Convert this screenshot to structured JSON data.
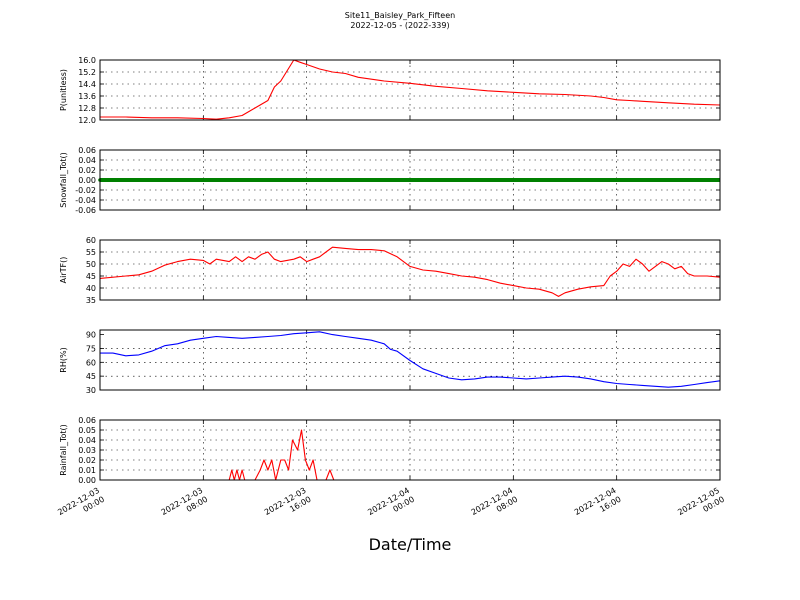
{
  "figure": {
    "title": "Site11_Baisley_Park_Fifteen",
    "subtitle": "2022-12-05 - (2022-339)",
    "xlabel": "Date/Time"
  },
  "chart_data": {
    "type": "line",
    "x_ticks": [
      [
        "2022-12-03",
        "00:00"
      ],
      [
        "2022-12-03",
        "08:00"
      ],
      [
        "2022-12-03",
        "16:00"
      ],
      [
        "2022-12-04",
        "00:00"
      ],
      [
        "2022-12-04",
        "08:00"
      ],
      [
        "2022-12-04",
        "16:00"
      ],
      [
        "2022-12-05",
        "00:00"
      ]
    ],
    "x_range_hours": [
      0,
      48
    ],
    "panels": [
      {
        "name": "pressure-panel",
        "ylabel": "P(unitless)",
        "ylim": [
          12.0,
          16.0
        ],
        "yticks": [
          "12.0",
          "12.8",
          "13.6",
          "14.4",
          "15.2",
          "16.0"
        ],
        "color": "#ff0000",
        "marker": false,
        "points": [
          [
            0,
            12.2
          ],
          [
            2,
            12.2
          ],
          [
            4,
            12.15
          ],
          [
            6,
            12.15
          ],
          [
            8,
            12.1
          ],
          [
            9,
            12.05
          ],
          [
            10,
            12.15
          ],
          [
            11,
            12.3
          ],
          [
            12,
            12.8
          ],
          [
            13,
            13.3
          ],
          [
            13.5,
            14.2
          ],
          [
            14,
            14.6
          ],
          [
            14.5,
            15.3
          ],
          [
            15,
            16.0
          ],
          [
            15.5,
            15.85
          ],
          [
            16,
            15.7
          ],
          [
            17,
            15.4
          ],
          [
            18,
            15.2
          ],
          [
            19,
            15.1
          ],
          [
            20,
            14.85
          ],
          [
            22,
            14.6
          ],
          [
            24,
            14.45
          ],
          [
            26,
            14.25
          ],
          [
            28,
            14.1
          ],
          [
            30,
            13.95
          ],
          [
            32,
            13.85
          ],
          [
            34,
            13.75
          ],
          [
            36,
            13.7
          ],
          [
            38,
            13.6
          ],
          [
            39,
            13.5
          ],
          [
            40,
            13.35
          ],
          [
            41,
            13.3
          ],
          [
            42,
            13.25
          ],
          [
            44,
            13.15
          ],
          [
            46,
            13.05
          ],
          [
            48,
            13.0
          ]
        ]
      },
      {
        "name": "snowfall-panel",
        "ylabel": "Snowfall_Tot()",
        "ylim": [
          -0.06,
          0.06
        ],
        "yticks": [
          "-0.06",
          "-0.04",
          "-0.02",
          "0.00",
          "0.02",
          "0.04",
          "0.06"
        ],
        "color": "#008000",
        "marker": true,
        "points": [
          [
            0,
            0
          ],
          [
            48,
            0
          ]
        ]
      },
      {
        "name": "air-temp-panel",
        "ylabel": "AirTF()",
        "ylim": [
          35,
          60
        ],
        "yticks": [
          "35",
          "40",
          "45",
          "50",
          "55",
          "60"
        ],
        "color": "#ff0000",
        "marker": false,
        "points": [
          [
            0,
            44
          ],
          [
            2,
            45
          ],
          [
            3,
            45.5
          ],
          [
            4,
            47
          ],
          [
            5,
            49.5
          ],
          [
            6,
            51
          ],
          [
            7,
            52
          ],
          [
            8,
            51.5
          ],
          [
            8.5,
            50
          ],
          [
            9,
            52
          ],
          [
            10,
            51
          ],
          [
            10.5,
            53
          ],
          [
            11,
            51
          ],
          [
            11.5,
            53
          ],
          [
            12,
            52
          ],
          [
            12.5,
            54
          ],
          [
            13,
            55
          ],
          [
            13.5,
            52
          ],
          [
            14,
            51
          ],
          [
            15,
            52
          ],
          [
            15.5,
            53
          ],
          [
            16,
            51
          ],
          [
            16.5,
            52
          ],
          [
            17,
            53
          ],
          [
            17.5,
            55
          ],
          [
            18,
            57
          ],
          [
            19,
            56.5
          ],
          [
            20,
            56
          ],
          [
            21,
            56
          ],
          [
            22,
            55.5
          ],
          [
            23,
            53
          ],
          [
            24,
            49
          ],
          [
            25,
            47.5
          ],
          [
            26,
            47
          ],
          [
            27,
            46
          ],
          [
            28,
            45
          ],
          [
            29,
            44.5
          ],
          [
            30,
            43.5
          ],
          [
            31,
            42
          ],
          [
            32,
            41
          ],
          [
            33,
            40
          ],
          [
            34,
            39.5
          ],
          [
            35,
            38
          ],
          [
            35.5,
            36.5
          ],
          [
            36,
            38
          ],
          [
            37,
            39.5
          ],
          [
            38,
            40.5
          ],
          [
            39,
            41
          ],
          [
            39.5,
            45
          ],
          [
            40,
            47
          ],
          [
            40.5,
            50
          ],
          [
            41,
            49
          ],
          [
            41.5,
            52
          ],
          [
            42,
            50
          ],
          [
            42.5,
            47
          ],
          [
            43,
            49
          ],
          [
            43.5,
            51
          ],
          [
            44,
            50
          ],
          [
            44.5,
            48
          ],
          [
            45,
            49
          ],
          [
            45.5,
            46
          ],
          [
            46,
            45
          ],
          [
            47,
            45
          ],
          [
            48,
            44.5
          ]
        ]
      },
      {
        "name": "rh-panel",
        "ylabel": "RH(%)",
        "ylim": [
          30,
          95
        ],
        "yticks": [
          "30",
          "45",
          "60",
          "75",
          "90"
        ],
        "color": "#0000ff",
        "marker": false,
        "points": [
          [
            0,
            70
          ],
          [
            1,
            70
          ],
          [
            2,
            67
          ],
          [
            3,
            68
          ],
          [
            4,
            72
          ],
          [
            5,
            78
          ],
          [
            6,
            80
          ],
          [
            7,
            84
          ],
          [
            8,
            86
          ],
          [
            9,
            88
          ],
          [
            10,
            87
          ],
          [
            11,
            86
          ],
          [
            12,
            87
          ],
          [
            13,
            88
          ],
          [
            14,
            89
          ],
          [
            15,
            91
          ],
          [
            16,
            92
          ],
          [
            17,
            93
          ],
          [
            18,
            90
          ],
          [
            19,
            88
          ],
          [
            20,
            86
          ],
          [
            21,
            84
          ],
          [
            22,
            80
          ],
          [
            22.5,
            74
          ],
          [
            23,
            72
          ],
          [
            24,
            62
          ],
          [
            25,
            53
          ],
          [
            26,
            48
          ],
          [
            27,
            43
          ],
          [
            28,
            41
          ],
          [
            29,
            42
          ],
          [
            30,
            44
          ],
          [
            31,
            44
          ],
          [
            32,
            43
          ],
          [
            33,
            42
          ],
          [
            34,
            43
          ],
          [
            35,
            44
          ],
          [
            36,
            45
          ],
          [
            37,
            44
          ],
          [
            38,
            42
          ],
          [
            39,
            39
          ],
          [
            40,
            37
          ],
          [
            41,
            36
          ],
          [
            42,
            35
          ],
          [
            43,
            34
          ],
          [
            44,
            33
          ],
          [
            45,
            34
          ],
          [
            46,
            36
          ],
          [
            47,
            38
          ],
          [
            48,
            40
          ]
        ]
      },
      {
        "name": "rainfall-panel",
        "ylabel": "Rainfall_Tot()",
        "ylim": [
          0,
          0.06
        ],
        "yticks": [
          "0.00",
          "0.01",
          "0.02",
          "0.03",
          "0.04",
          "0.05",
          "0.06"
        ],
        "color": "#ff0000",
        "marker": false,
        "points": [
          [
            0,
            0
          ],
          [
            10,
            0
          ],
          [
            10.2,
            0.01
          ],
          [
            10.4,
            0
          ],
          [
            10.6,
            0.01
          ],
          [
            10.8,
            0
          ],
          [
            11,
            0.01
          ],
          [
            11.2,
            0
          ],
          [
            12,
            0
          ],
          [
            12.4,
            0.01
          ],
          [
            12.7,
            0.02
          ],
          [
            13,
            0.01
          ],
          [
            13.3,
            0.02
          ],
          [
            13.6,
            0
          ],
          [
            14,
            0.02
          ],
          [
            14.3,
            0.02
          ],
          [
            14.6,
            0.01
          ],
          [
            14.9,
            0.04
          ],
          [
            15.3,
            0.03
          ],
          [
            15.6,
            0.05
          ],
          [
            15.9,
            0.02
          ],
          [
            16.2,
            0.01
          ],
          [
            16.5,
            0.02
          ],
          [
            16.8,
            0
          ],
          [
            17.5,
            0
          ],
          [
            17.8,
            0.01
          ],
          [
            18.1,
            0
          ],
          [
            48,
            0
          ]
        ]
      }
    ]
  }
}
